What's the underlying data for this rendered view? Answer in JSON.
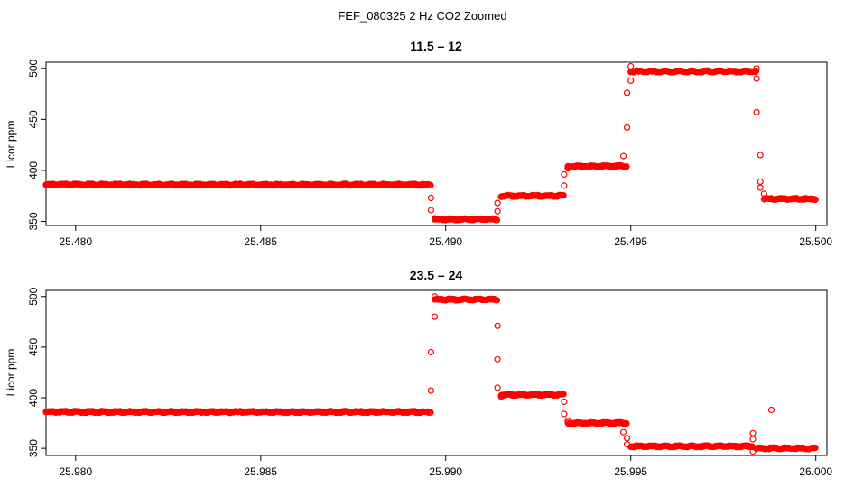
{
  "figure": {
    "suptitle": "FEF_080325  2 Hz CO2 Zoomed"
  },
  "chart_data": [
    {
      "type": "scatter",
      "title": "11.5 – 12",
      "xlabel": "",
      "ylabel": "Licor ppm",
      "xlim": [
        25.4792,
        25.5003
      ],
      "ylim": [
        346,
        506
      ],
      "xticks": [
        "25.480",
        "25.485",
        "25.490",
        "25.495",
        "25.500"
      ],
      "xtick_values": [
        25.48,
        25.485,
        25.49,
        25.495,
        25.5
      ],
      "yticks": [
        "350",
        "400",
        "450",
        "500"
      ],
      "ytick_values": [
        350,
        400,
        450,
        500
      ],
      "marker_color": "#ff0000",
      "grid": false,
      "dense_segments": [
        {
          "x": [
            25.4792,
            25.4896
          ],
          "y": 386
        },
        {
          "x": [
            25.4897,
            25.4914
          ],
          "y": 352
        },
        {
          "x": [
            25.4915,
            25.4932
          ],
          "y": 375
        },
        {
          "x": [
            25.4933,
            25.4949
          ],
          "y": 404
        },
        {
          "x": [
            25.495,
            25.4984
          ],
          "y": 497
        },
        {
          "x": [
            25.4986,
            25.5
          ],
          "y": 372
        }
      ],
      "transition_points": [
        {
          "x": 25.4896,
          "y": 373
        },
        {
          "x": 25.4896,
          "y": 361
        },
        {
          "x": 25.4897,
          "y": 353
        },
        {
          "x": 25.4914,
          "y": 360
        },
        {
          "x": 25.4914,
          "y": 368
        },
        {
          "x": 25.4915,
          "y": 374
        },
        {
          "x": 25.4932,
          "y": 385
        },
        {
          "x": 25.4932,
          "y": 396
        },
        {
          "x": 25.4933,
          "y": 402
        },
        {
          "x": 25.4948,
          "y": 414
        },
        {
          "x": 25.4949,
          "y": 442
        },
        {
          "x": 25.4949,
          "y": 476
        },
        {
          "x": 25.495,
          "y": 488
        },
        {
          "x": 25.495,
          "y": 502
        },
        {
          "x": 25.4984,
          "y": 500
        },
        {
          "x": 25.4984,
          "y": 490
        },
        {
          "x": 25.4984,
          "y": 457
        },
        {
          "x": 25.4985,
          "y": 415
        },
        {
          "x": 25.4985,
          "y": 389
        },
        {
          "x": 25.4985,
          "y": 383
        },
        {
          "x": 25.4986,
          "y": 377
        }
      ]
    },
    {
      "type": "scatter",
      "title": "23.5 – 24",
      "xlabel": "",
      "ylabel": "Licor ppm",
      "xlim": [
        25.9792,
        26.0003
      ],
      "ylim": [
        343,
        506
      ],
      "xticks": [
        "25.980",
        "25.985",
        "25.990",
        "25.995",
        "26.000"
      ],
      "xtick_values": [
        25.98,
        25.985,
        25.99,
        25.995,
        26.0
      ],
      "yticks": [
        "350",
        "400",
        "450",
        "500"
      ],
      "ytick_values": [
        350,
        400,
        450,
        500
      ],
      "marker_color": "#ff0000",
      "grid": false,
      "dense_segments": [
        {
          "x": [
            25.9792,
            25.9896
          ],
          "y": 386
        },
        {
          "x": [
            25.9897,
            25.9914
          ],
          "y": 497
        },
        {
          "x": [
            25.9915,
            25.9932
          ],
          "y": 403
        },
        {
          "x": [
            25.9933,
            25.9949
          ],
          "y": 375
        },
        {
          "x": [
            25.995,
            25.9983
          ],
          "y": 352
        },
        {
          "x": [
            25.9984,
            26.0
          ],
          "y": 350
        }
      ],
      "transition_points": [
        {
          "x": 25.9896,
          "y": 407
        },
        {
          "x": 25.9896,
          "y": 445
        },
        {
          "x": 25.9897,
          "y": 480
        },
        {
          "x": 25.9897,
          "y": 500
        },
        {
          "x": 25.9914,
          "y": 471
        },
        {
          "x": 25.9914,
          "y": 438
        },
        {
          "x": 25.9914,
          "y": 410
        },
        {
          "x": 25.9915,
          "y": 401
        },
        {
          "x": 25.9932,
          "y": 396
        },
        {
          "x": 25.9932,
          "y": 384
        },
        {
          "x": 25.9933,
          "y": 377
        },
        {
          "x": 25.9948,
          "y": 366
        },
        {
          "x": 25.9949,
          "y": 360
        },
        {
          "x": 25.9949,
          "y": 354
        },
        {
          "x": 25.9983,
          "y": 365
        },
        {
          "x": 25.9983,
          "y": 359
        },
        {
          "x": 25.9983,
          "y": 347
        },
        {
          "x": 25.9988,
          "y": 388
        }
      ]
    }
  ]
}
